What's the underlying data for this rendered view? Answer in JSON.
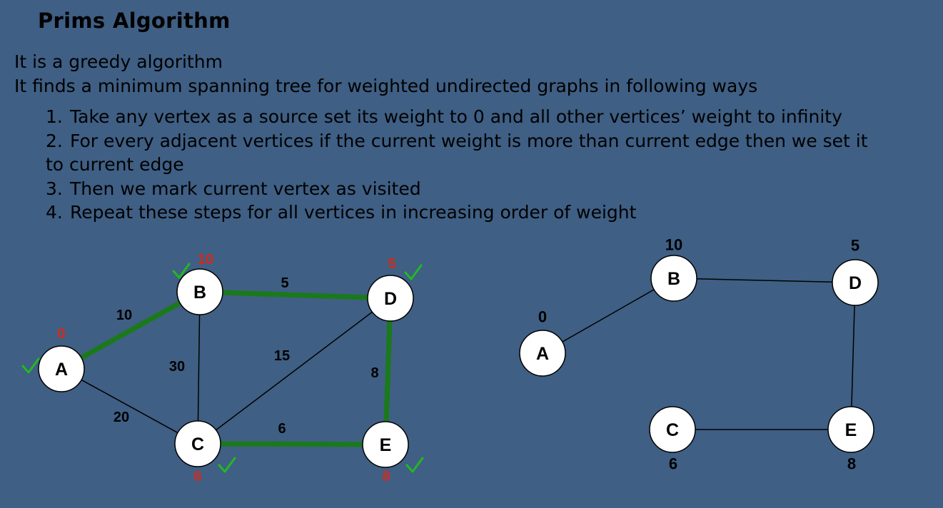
{
  "title": "Prims Algorithm",
  "intro": {
    "line1": "It is a greedy algorithm",
    "line2": "It finds a minimum spanning tree for weighted undirected graphs in following ways"
  },
  "steps": [
    {
      "num": "1.",
      "text": "Take any vertex as a source set its weight to 0 and all other vertices’ weight to infinity"
    },
    {
      "num": "2.",
      "text": "For every adjacent vertices if the current weight is more than current edge then we set it",
      "cont": "to current edge"
    },
    {
      "num": "3.",
      "text": "Then we mark current vertex as visited"
    },
    {
      "num": "4.",
      "text": "Repeat these steps for all vertices in increasing order of weight"
    }
  ],
  "colors": {
    "background": "#3f5f84",
    "mst_edge": "#1a7a1a",
    "check": "#22b822",
    "weight_red": "#d42a1a"
  },
  "graph": {
    "nodes": [
      {
        "id": "A",
        "label": "A",
        "weight_label": "0",
        "visited": true
      },
      {
        "id": "B",
        "label": "B",
        "weight_label": "10",
        "visited": true
      },
      {
        "id": "C",
        "label": "C",
        "weight_label": "6",
        "visited": true
      },
      {
        "id": "D",
        "label": "D",
        "weight_label": "5",
        "visited": true
      },
      {
        "id": "E",
        "label": "E",
        "weight_label": "8",
        "visited": true
      }
    ],
    "edges": [
      {
        "from": "A",
        "to": "B",
        "weight": "10",
        "in_mst": true
      },
      {
        "from": "A",
        "to": "C",
        "weight": "20",
        "in_mst": false
      },
      {
        "from": "B",
        "to": "C",
        "weight": "30",
        "in_mst": false
      },
      {
        "from": "B",
        "to": "D",
        "weight": "5",
        "in_mst": true
      },
      {
        "from": "C",
        "to": "D",
        "weight": "15",
        "in_mst": false
      },
      {
        "from": "C",
        "to": "E",
        "weight": "6",
        "in_mst": true
      },
      {
        "from": "D",
        "to": "E",
        "weight": "8",
        "in_mst": true
      }
    ]
  },
  "mst": {
    "nodes": [
      {
        "id": "A",
        "label": "A",
        "weight_label": "0"
      },
      {
        "id": "B",
        "label": "B",
        "weight_label": "10"
      },
      {
        "id": "C",
        "label": "C",
        "weight_label": "6"
      },
      {
        "id": "D",
        "label": "D",
        "weight_label": "5"
      },
      {
        "id": "E",
        "label": "E",
        "weight_label": "8"
      }
    ],
    "edges": [
      {
        "from": "A",
        "to": "B"
      },
      {
        "from": "B",
        "to": "D"
      },
      {
        "from": "D",
        "to": "E"
      },
      {
        "from": "E",
        "to": "C"
      }
    ]
  }
}
